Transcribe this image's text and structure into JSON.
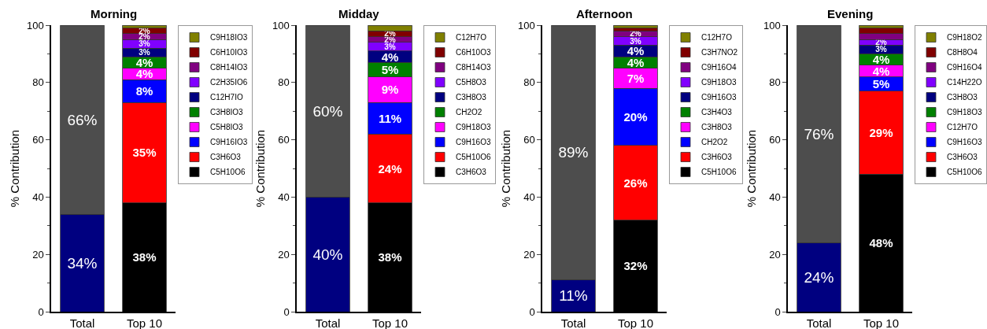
{
  "chart_data": [
    {
      "type": "bar",
      "title": "Morning",
      "ylabel": "% Contribution",
      "categories": [
        "Total",
        "Top 10"
      ],
      "stacked": true,
      "ylim": [
        0,
        100
      ],
      "yticks": [
        0,
        20,
        40,
        60,
        80,
        100
      ],
      "legend": "top right",
      "series": [
        {
          "color": "#000080",
          "values": [
            34,
            null
          ],
          "value_labels": [
            "34%",
            null
          ]
        },
        {
          "color": "#4d4d4d",
          "values": [
            66,
            null
          ],
          "value_labels": [
            "66%",
            null
          ]
        },
        {
          "name": "C5H10O6",
          "color": "#000000",
          "values": [
            null,
            38
          ],
          "value_labels": [
            null,
            "38%"
          ]
        },
        {
          "name": "C3H6O3",
          "color": "#ff0000",
          "values": [
            null,
            35
          ],
          "value_labels": [
            null,
            "35%"
          ]
        },
        {
          "name": "C9H16IO3",
          "color": "#0000ff",
          "values": [
            null,
            8
          ],
          "value_labels": [
            null,
            "8%"
          ]
        },
        {
          "name": "C5H8IO3",
          "color": "#ff00ff",
          "values": [
            null,
            4
          ],
          "value_labels": [
            null,
            "4%"
          ]
        },
        {
          "name": "C3H8IO3",
          "color": "#008000",
          "values": [
            null,
            4
          ],
          "value_labels": [
            null,
            "4%"
          ]
        },
        {
          "name": "C12H7IO",
          "color": "#000080",
          "values": [
            null,
            3
          ],
          "value_labels": [
            null,
            "3%"
          ]
        },
        {
          "name": "C2H35IO6",
          "color": "#8000ff",
          "values": [
            null,
            3
          ],
          "value_labels": [
            null,
            "3%"
          ]
        },
        {
          "name": "C8H14IO3",
          "color": "#800080",
          "values": [
            null,
            2
          ],
          "value_labels": [
            null,
            "2%"
          ]
        },
        {
          "name": "C6H10IO3",
          "color": "#800000",
          "values": [
            null,
            2
          ],
          "value_labels": [
            null,
            "2%"
          ]
        },
        {
          "name": "C9H18IO3",
          "color": "#808000",
          "values": [
            null,
            1
          ],
          "value_labels": [
            null,
            null
          ]
        }
      ]
    },
    {
      "type": "bar",
      "title": "Midday",
      "ylabel": "% Contribution",
      "categories": [
        "Total",
        "Top 10"
      ],
      "stacked": true,
      "ylim": [
        0,
        100
      ],
      "yticks": [
        0,
        20,
        40,
        60,
        80,
        100
      ],
      "legend": "top right",
      "series": [
        {
          "color": "#000080",
          "values": [
            40,
            null
          ],
          "value_labels": [
            "40%",
            null
          ]
        },
        {
          "color": "#4d4d4d",
          "values": [
            60,
            null
          ],
          "value_labels": [
            "60%",
            null
          ]
        },
        {
          "name": "C3H6O3",
          "color": "#000000",
          "values": [
            null,
            38
          ],
          "value_labels": [
            null,
            "38%"
          ]
        },
        {
          "name": "C5H10O6",
          "color": "#ff0000",
          "values": [
            null,
            24
          ],
          "value_labels": [
            null,
            "24%"
          ]
        },
        {
          "name": "C9H16O3",
          "color": "#0000ff",
          "values": [
            null,
            11
          ],
          "value_labels": [
            null,
            "11%"
          ]
        },
        {
          "name": "C9H18O3",
          "color": "#ff00ff",
          "values": [
            null,
            9
          ],
          "value_labels": [
            null,
            "9%"
          ]
        },
        {
          "name": "CH2O2",
          "color": "#008000",
          "values": [
            null,
            5
          ],
          "value_labels": [
            null,
            "5%"
          ]
        },
        {
          "name": "C3H8O3",
          "color": "#000080",
          "values": [
            null,
            4
          ],
          "value_labels": [
            null,
            "4%"
          ]
        },
        {
          "name": "C5H8O3",
          "color": "#8000ff",
          "values": [
            null,
            3
          ],
          "value_labels": [
            null,
            "3%"
          ]
        },
        {
          "name": "C8H14O3",
          "color": "#800080",
          "values": [
            null,
            2
          ],
          "value_labels": [
            null,
            "2%"
          ]
        },
        {
          "name": "C6H10O3",
          "color": "#800000",
          "values": [
            null,
            2
          ],
          "value_labels": [
            null,
            "2%"
          ]
        },
        {
          "name": "C12H7O",
          "color": "#808000",
          "values": [
            null,
            2
          ],
          "value_labels": [
            null,
            null
          ]
        }
      ]
    },
    {
      "type": "bar",
      "title": "Afternoon",
      "ylabel": "% Contribution",
      "categories": [
        "Total",
        "Top 10"
      ],
      "stacked": true,
      "ylim": [
        0,
        100
      ],
      "yticks": [
        0,
        20,
        40,
        60,
        80,
        100
      ],
      "legend": "top right",
      "series": [
        {
          "color": "#000080",
          "values": [
            11,
            null
          ],
          "value_labels": [
            "11%",
            null
          ]
        },
        {
          "color": "#4d4d4d",
          "values": [
            89,
            null
          ],
          "value_labels": [
            "89%",
            null
          ]
        },
        {
          "name": "C5H10O6",
          "color": "#000000",
          "values": [
            null,
            32
          ],
          "value_labels": [
            null,
            "32%"
          ]
        },
        {
          "name": "C3H6O3",
          "color": "#ff0000",
          "values": [
            null,
            26
          ],
          "value_labels": [
            null,
            "26%"
          ]
        },
        {
          "name": "CH2O2",
          "color": "#0000ff",
          "values": [
            null,
            20
          ],
          "value_labels": [
            null,
            "20%"
          ]
        },
        {
          "name": "C3H8O3",
          "color": "#ff00ff",
          "values": [
            null,
            7
          ],
          "value_labels": [
            null,
            "7%"
          ]
        },
        {
          "name": "C3H4O3",
          "color": "#008000",
          "values": [
            null,
            4
          ],
          "value_labels": [
            null,
            "4%"
          ]
        },
        {
          "name": "C9H16O3",
          "color": "#000080",
          "values": [
            null,
            4
          ],
          "value_labels": [
            null,
            "4%"
          ]
        },
        {
          "name": "C9H18O3",
          "color": "#8000ff",
          "values": [
            null,
            3
          ],
          "value_labels": [
            null,
            "3%"
          ]
        },
        {
          "name": "C9H16O4",
          "color": "#800080",
          "values": [
            null,
            2
          ],
          "value_labels": [
            null,
            "2%"
          ]
        },
        {
          "name": "C3H7NO2",
          "color": "#800000",
          "values": [
            null,
            1
          ],
          "value_labels": [
            null,
            null
          ]
        },
        {
          "name": "C12H7O",
          "color": "#808000",
          "values": [
            null,
            1
          ],
          "value_labels": [
            null,
            null
          ]
        }
      ]
    },
    {
      "type": "bar",
      "title": "Evening",
      "ylabel": "% Contribution",
      "categories": [
        "Total",
        "Top 10"
      ],
      "stacked": true,
      "ylim": [
        0,
        100
      ],
      "yticks": [
        0,
        20,
        40,
        60,
        80,
        100
      ],
      "legend": "top right",
      "series": [
        {
          "color": "#000080",
          "values": [
            24,
            null
          ],
          "value_labels": [
            "24%",
            null
          ]
        },
        {
          "color": "#4d4d4d",
          "values": [
            76,
            null
          ],
          "value_labels": [
            "76%",
            null
          ]
        },
        {
          "name": "C5H10O6",
          "color": "#000000",
          "values": [
            null,
            48
          ],
          "value_labels": [
            null,
            "48%"
          ]
        },
        {
          "name": "C3H6O3",
          "color": "#ff0000",
          "values": [
            null,
            29
          ],
          "value_labels": [
            null,
            "29%"
          ]
        },
        {
          "name": "C9H16O3",
          "color": "#0000ff",
          "values": [
            null,
            5
          ],
          "value_labels": [
            null,
            "5%"
          ]
        },
        {
          "name": "C12H7O",
          "color": "#ff00ff",
          "values": [
            null,
            4
          ],
          "value_labels": [
            null,
            "4%"
          ]
        },
        {
          "name": "C9H18O3",
          "color": "#008000",
          "values": [
            null,
            4
          ],
          "value_labels": [
            null,
            "4%"
          ]
        },
        {
          "name": "C3H8O3",
          "color": "#000080",
          "values": [
            null,
            3
          ],
          "value_labels": [
            null,
            "3%"
          ]
        },
        {
          "name": "C14H22O",
          "color": "#8000ff",
          "values": [
            null,
            2
          ],
          "value_labels": [
            null,
            "2%"
          ]
        },
        {
          "name": "C9H16O4",
          "color": "#800080",
          "values": [
            null,
            2
          ],
          "value_labels": [
            null,
            null
          ]
        },
        {
          "name": "C8H8O4",
          "color": "#800000",
          "values": [
            null,
            2
          ],
          "value_labels": [
            null,
            null
          ]
        },
        {
          "name": "C9H18O2",
          "color": "#808000",
          "values": [
            null,
            1
          ],
          "value_labels": [
            null,
            null
          ]
        }
      ]
    }
  ]
}
